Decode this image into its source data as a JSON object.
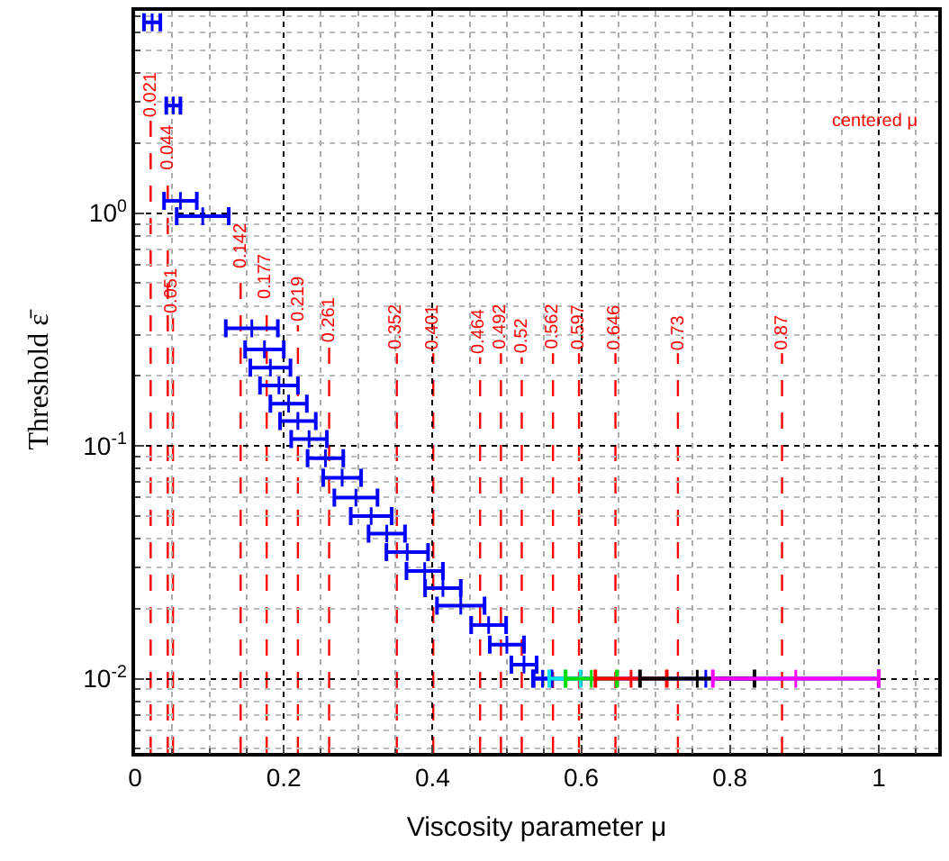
{
  "chart_data": {
    "type": "scatter",
    "xlabel": "Viscosity parameter μ",
    "ylabel": "Threshold ε̄",
    "log": "y",
    "grid": true,
    "marker": "cross",
    "xlim": [
      0,
      1.08
    ],
    "xticks": [
      0,
      0.2,
      0.4,
      0.6,
      0.8,
      1
    ],
    "ylim": [
      0.0048,
      7.4
    ],
    "yticks": [
      {
        "value": 0.01,
        "label": "10$^{-2}$"
      },
      {
        "value": 0.1,
        "label": "10$^{-1}$"
      },
      {
        "value": 1,
        "label": "10$^{0}$"
      }
    ],
    "series": [
      {
        "color": "#0000ff",
        "x": [
          0.023,
          0.0515,
          0.061,
          0.091,
          0.157,
          0.174,
          0.182,
          0.1935,
          0.2065,
          0.219,
          0.234,
          0.256,
          0.2785,
          0.297,
          0.3175,
          0.3385,
          0.366,
          0.3895,
          0.414,
          0.438,
          0.4755,
          0.5,
          0.523,
          0.548,
          0.7675
        ],
        "values": [
          6.6,
          2.9,
          1.13,
          0.97,
          0.32,
          0.26,
          0.217,
          0.182,
          0.152,
          0.128,
          0.107,
          0.0885,
          0.073,
          0.06,
          0.05,
          0.042,
          0.035,
          0.029,
          0.0245,
          0.0206,
          0.017,
          0.014,
          0.0115,
          0.01,
          0.01
        ],
        "xerrors": [
          [
            0.012,
            0.034
          ],
          [
            0.042,
            0.061
          ],
          [
            0.039,
            0.083
          ],
          [
            0.056,
            0.126
          ],
          [
            0.122,
            0.192
          ],
          [
            0.148,
            0.2
          ],
          [
            0.155,
            0.209
          ],
          [
            0.168,
            0.219
          ],
          [
            0.182,
            0.231
          ],
          [
            0.195,
            0.243
          ],
          [
            0.21,
            0.258
          ],
          [
            0.232,
            0.28
          ],
          [
            0.253,
            0.304
          ],
          [
            0.268,
            0.326
          ],
          [
            0.29,
            0.345
          ],
          [
            0.314,
            0.363
          ],
          [
            0.338,
            0.394
          ],
          [
            0.365,
            0.414
          ],
          [
            0.39,
            0.438
          ],
          [
            0.406,
            0.47
          ],
          [
            0.452,
            0.499
          ],
          [
            0.477,
            0.523
          ],
          [
            0.506,
            0.54
          ],
          [
            0.536,
            0.56
          ],
          [
            0.535,
            1.0
          ]
        ]
      },
      {
        "color": "#00e5e5",
        "x": [
          0.578
        ],
        "values": [
          0.01
        ],
        "xerrors": [
          [
            0.557,
            0.599
          ]
        ]
      },
      {
        "color": "#00dd00",
        "x": [
          0.6135
        ],
        "values": [
          0.01
        ],
        "xerrors": [
          [
            0.579,
            0.648
          ]
        ]
      },
      {
        "color": "#ff0000",
        "x": [
          0.667
        ],
        "values": [
          0.01
        ],
        "xerrors": [
          [
            0.619,
            0.715
          ]
        ]
      },
      {
        "color": "#000000",
        "x": [
          0.756
        ],
        "values": [
          0.01
        ],
        "xerrors": [
          [
            0.679,
            0.833
          ]
        ]
      },
      {
        "color": "#ff00ff",
        "x": [
          0.8885
        ],
        "values": [
          0.01
        ],
        "xerrors": [
          [
            0.777,
            1.0
          ]
        ]
      }
    ],
    "ref_lines": [
      {
        "axis": "x",
        "value": 0.021,
        "color": "#ff0000",
        "line_style": "dashed"
      },
      {
        "axis": "x",
        "value": 0.044,
        "color": "#ff0000",
        "line_style": "dashed"
      },
      {
        "axis": "x",
        "value": 0.051,
        "color": "#ff0000",
        "line_style": "dashed"
      },
      {
        "axis": "x",
        "value": 0.142,
        "color": "#ff0000",
        "line_style": "dashed"
      },
      {
        "axis": "x",
        "value": 0.177,
        "color": "#ff0000",
        "line_style": "dashed"
      },
      {
        "axis": "x",
        "value": 0.219,
        "color": "#ff0000",
        "line_style": "dashed"
      },
      {
        "axis": "x",
        "value": 0.261,
        "color": "#ff0000",
        "line_style": "dashed"
      },
      {
        "axis": "x",
        "value": 0.352,
        "color": "#ff0000",
        "line_style": "dashed"
      },
      {
        "axis": "x",
        "value": 0.401,
        "color": "#ff0000",
        "line_style": "dashed"
      },
      {
        "axis": "x",
        "value": 0.464,
        "color": "#ff0000",
        "line_style": "dashed"
      },
      {
        "axis": "x",
        "value": 0.492,
        "color": "#ff0000",
        "line_style": "dashed"
      },
      {
        "axis": "x",
        "value": 0.52,
        "color": "#ff0000",
        "line_style": "dashed"
      },
      {
        "axis": "x",
        "value": 0.562,
        "color": "#ff0000",
        "line_style": "dashed"
      },
      {
        "axis": "x",
        "value": 0.597,
        "color": "#ff0000",
        "line_style": "dashed"
      },
      {
        "axis": "x",
        "value": 0.646,
        "color": "#ff0000",
        "line_style": "dashed"
      },
      {
        "axis": "x",
        "value": 0.73,
        "color": "#ff0000",
        "line_style": "dashed"
      },
      {
        "axis": "x",
        "value": 0.87,
        "color": "#ff0000",
        "line_style": "dashed"
      }
    ],
    "annotations": [
      {
        "text": "0.021",
        "x": 0.021,
        "y": 2.5
      },
      {
        "text": "0.044",
        "x": 0.044,
        "y": 1.47
      },
      {
        "text": "0.051",
        "x": 0.051,
        "y": 0.355
      },
      {
        "text": "0.142",
        "x": 0.142,
        "y": 0.56
      },
      {
        "text": "0.177",
        "x": 0.177,
        "y": 0.41
      },
      {
        "text": "0.219",
        "x": 0.219,
        "y": 0.33
      },
      {
        "text": "0.261",
        "x": 0.261,
        "y": 0.27
      },
      {
        "text": "0.352",
        "x": 0.352,
        "y": 0.25
      },
      {
        "text": "0.401",
        "x": 0.401,
        "y": 0.25
      },
      {
        "text": "0.464",
        "x": 0.464,
        "y": 0.24
      },
      {
        "text": "0.492",
        "x": 0.492,
        "y": 0.25
      },
      {
        "text": "0.52",
        "x": 0.52,
        "y": 0.24
      },
      {
        "text": "0.562",
        "x": 0.562,
        "y": 0.25
      },
      {
        "text": "0.597",
        "x": 0.597,
        "y": 0.25
      },
      {
        "text": "0.646",
        "x": 0.646,
        "y": 0.25
      },
      {
        "text": "0.73",
        "x": 0.73,
        "y": 0.25
      },
      {
        "text": "0.87",
        "x": 0.87,
        "y": 0.25
      },
      "centered μ"
    ]
  }
}
